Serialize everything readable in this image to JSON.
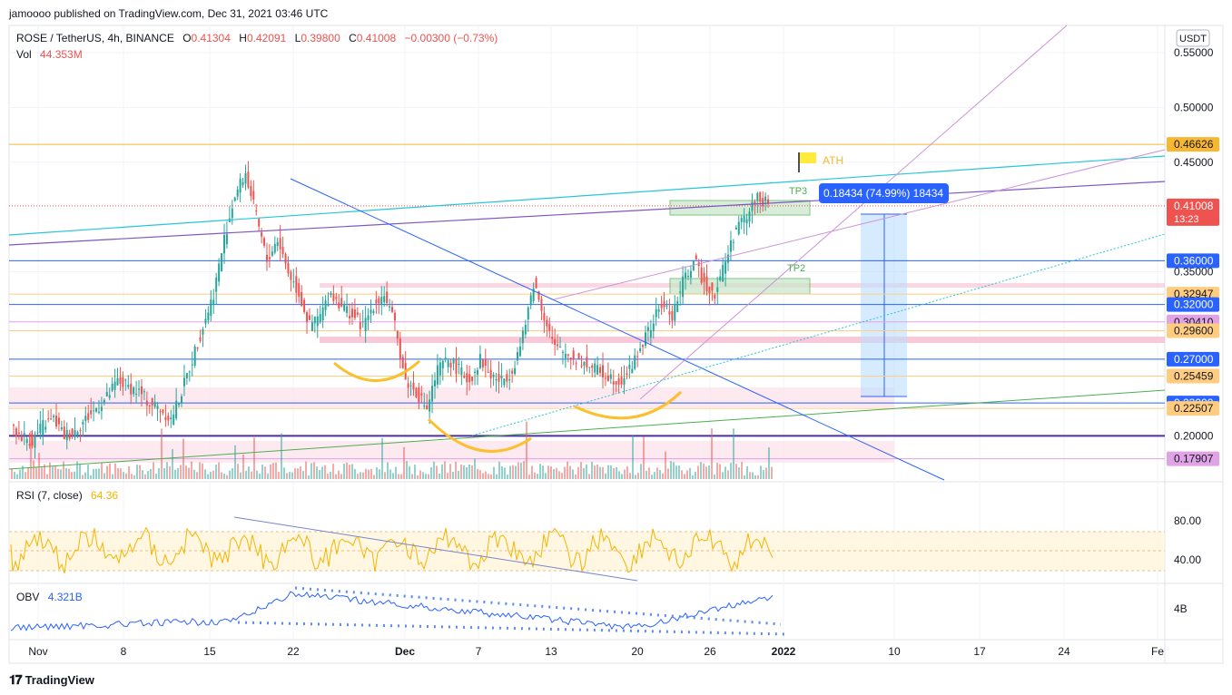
{
  "header": {
    "published": "jamoooo published on TradingView.com, Dec 31, 2021 03:46 UTC"
  },
  "legend": {
    "symbol": "ROSE / TetherUS, 4h, BINANCE",
    "open_label": "O",
    "open": "0.41304",
    "high_label": "H",
    "high": "0.42091",
    "low_label": "L",
    "low": "0.39800",
    "close_label": "C",
    "close": "0.41008",
    "change": "−0.00300 (−0.73%)",
    "vol_label": "Vol",
    "vol": "44.353M"
  },
  "currency_button": "USDT",
  "rsi": {
    "label": "RSI (7, close)",
    "value": "64.36",
    "ticks": [
      "80.00",
      "40.00"
    ]
  },
  "obv": {
    "label": "OBV",
    "value": "4.321B",
    "ticks": [
      "4B"
    ]
  },
  "annotations": {
    "ath": "ATH",
    "tp3": "TP3",
    "tp2": "TP2",
    "measure": "0.18434 (74.99%) 18434",
    "countdown": "13:23"
  },
  "footer": {
    "brand": "TradingView"
  },
  "colors": {
    "up": "#26a69a",
    "down": "#ef5350",
    "blue": "#2962ff",
    "orange": "#f7b731",
    "purple": "#7e57c2",
    "teal": "#26c6da",
    "pink": "#f8bbd0",
    "green": "#4caf50",
    "rsi_line": "#f5b400",
    "obv_line": "#2962ff"
  },
  "chart_data": {
    "type": "candlestick",
    "title": "ROSE / TetherUS, 4h, BINANCE",
    "y_ticks": [
      "0.55000",
      "0.50000",
      "0.45000",
      "0.35000",
      "0.20000"
    ],
    "ylim": [
      0.16,
      0.6
    ],
    "x_ticks": [
      "Nov",
      "8",
      "15",
      "22",
      "Dec",
      "7",
      "13",
      "20",
      "26",
      "2022",
      "10",
      "17",
      "24",
      "Fe"
    ],
    "price_tags": [
      {
        "label": "0.46626",
        "price": 0.46626,
        "color": "#f7b731",
        "text_color": "#131722"
      },
      {
        "label": "0.41008",
        "price": 0.41008,
        "color": "#ef5350",
        "text_color": "#ffffff"
      },
      {
        "label": "0.36000",
        "price": 0.36,
        "color": "#2962ff",
        "text_color": "#ffffff"
      },
      {
        "label": "0.32947",
        "price": 0.32947,
        "color": "#ffcc80",
        "text_color": "#131722"
      },
      {
        "label": "0.32000",
        "price": 0.32,
        "color": "#2962ff",
        "text_color": "#ffffff"
      },
      {
        "label": "0.30410",
        "price": 0.3041,
        "color": "#e1a3e6",
        "text_color": "#131722"
      },
      {
        "label": "0.29600",
        "price": 0.296,
        "color": "#ffcc80",
        "text_color": "#131722"
      },
      {
        "label": "0.27000",
        "price": 0.27,
        "color": "#2962ff",
        "text_color": "#ffffff"
      },
      {
        "label": "0.25459",
        "price": 0.25459,
        "color": "#ffcc80",
        "text_color": "#131722"
      },
      {
        "label": "0.23000",
        "price": 0.23,
        "color": "#2962ff",
        "text_color": "#ffffff"
      },
      {
        "label": "0.22507",
        "price": 0.22507,
        "color": "#ffcc80",
        "text_color": "#131722"
      },
      {
        "label": "0.17907",
        "price": 0.17907,
        "color": "#e1a3e6",
        "text_color": "#131722"
      }
    ],
    "series": [
      {
        "name": "price",
        "ohlc_close_path": [
          0.205,
          0.2,
          0.195,
          0.21,
          0.215,
          0.2,
          0.205,
          0.215,
          0.225,
          0.235,
          0.25,
          0.245,
          0.24,
          0.23,
          0.225,
          0.215,
          0.24,
          0.27,
          0.3,
          0.33,
          0.38,
          0.42,
          0.44,
          0.4,
          0.36,
          0.38,
          0.35,
          0.33,
          0.3,
          0.31,
          0.33,
          0.32,
          0.31,
          0.3,
          0.32,
          0.33,
          0.3,
          0.25,
          0.24,
          0.225,
          0.26,
          0.27,
          0.26,
          0.25,
          0.27,
          0.255,
          0.25,
          0.26,
          0.29,
          0.34,
          0.31,
          0.28,
          0.275,
          0.27,
          0.265,
          0.26,
          0.255,
          0.25,
          0.26,
          0.28,
          0.3,
          0.32,
          0.31,
          0.34,
          0.36,
          0.34,
          0.33,
          0.36,
          0.39,
          0.4,
          0.42,
          0.41
        ]
      }
    ]
  }
}
